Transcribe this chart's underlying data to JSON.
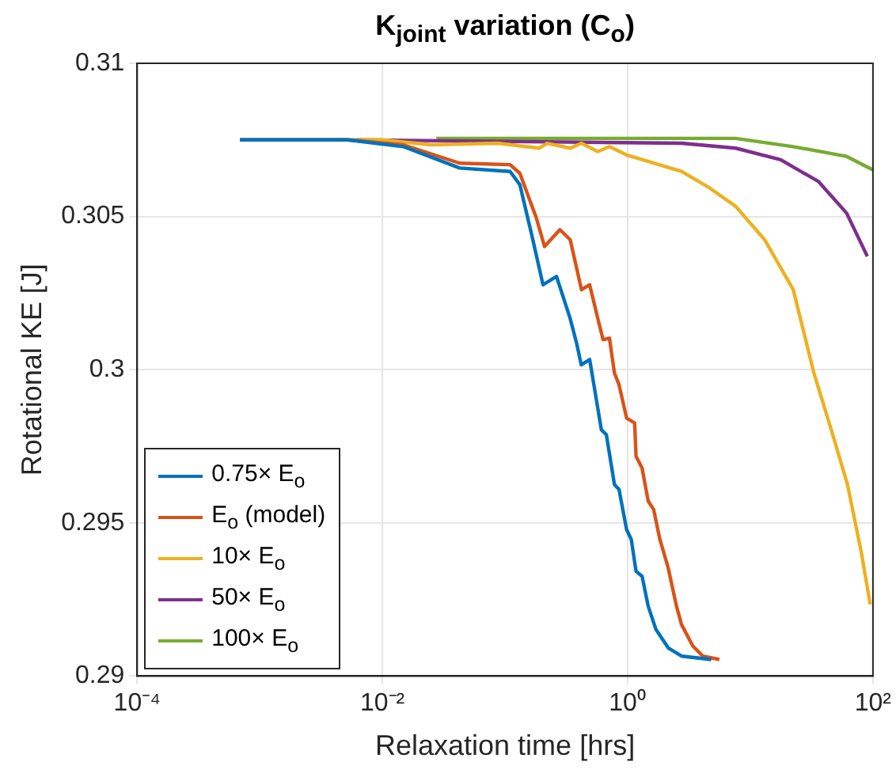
{
  "chart_data": {
    "type": "line",
    "title": "K$_{joint}$ variation (C$_{o}$)",
    "xlabel": "Relaxation time [hrs]",
    "ylabel": "Rotational KE [J]",
    "log": "x",
    "xlim": [
      0.0001,
      100
    ],
    "xticks": [
      {
        "value": 0.0001,
        "label": "10⁻⁴"
      },
      {
        "value": 0.01,
        "label": "10⁻²"
      },
      {
        "value": 1,
        "label": "10⁰"
      },
      {
        "value": 100,
        "label": "10²"
      }
    ],
    "ylim": [
      0.29,
      0.31
    ],
    "yticks": [
      0.29,
      0.295,
      0.3,
      0.305,
      0.31
    ],
    "grid": true,
    "legend": "bottom left",
    "marker": "none",
    "line_style": "solid",
    "series": [
      {
        "name": "0.75× E$_{o}$",
        "color": "#0072bd",
        "x": [
          0.00069,
          0.0052,
          0.0148,
          0.0427,
          0.11,
          0.132,
          0.165,
          0.204,
          0.263,
          0.339,
          0.383,
          0.418,
          0.49,
          0.61,
          0.67,
          0.78,
          0.85,
          0.98,
          1.07,
          1.17,
          1.31,
          1.47,
          1.7,
          2.14,
          2.75,
          4.8
        ],
        "values": [
          0.3075,
          0.3075,
          0.30728,
          0.30658,
          0.30647,
          0.30604,
          0.3044,
          0.30277,
          0.30304,
          0.30168,
          0.30087,
          0.30016,
          0.30033,
          0.29804,
          0.29788,
          0.29625,
          0.29609,
          0.29478,
          0.29446,
          0.29342,
          0.29326,
          0.29228,
          0.29152,
          0.29092,
          0.29065,
          0.29054
        ]
      },
      {
        "name": "E$_{o}$ (model)",
        "color": "#d95319",
        "x": [
          0.00069,
          0.0052,
          0.0148,
          0.0427,
          0.11,
          0.132,
          0.18,
          0.21,
          0.28,
          0.34,
          0.42,
          0.49,
          0.57,
          0.63,
          0.71,
          0.78,
          0.85,
          0.98,
          1.14,
          1.17,
          1.31,
          1.47,
          1.63,
          1.83,
          2.14,
          2.5,
          2.75,
          3.4,
          4.1,
          5.6
        ],
        "values": [
          0.3075,
          0.3075,
          0.30734,
          0.30674,
          0.30669,
          0.30641,
          0.30495,
          0.30402,
          0.30457,
          0.30424,
          0.30261,
          0.30277,
          0.30168,
          0.30098,
          0.30103,
          0.29989,
          0.29951,
          0.29842,
          0.29826,
          0.29717,
          0.29679,
          0.29571,
          0.29543,
          0.29446,
          0.29353,
          0.29228,
          0.29168,
          0.29098,
          0.29065,
          0.29054
        ]
      },
      {
        "name": "10× E$_{o}$",
        "color": "#edb120",
        "x": [
          0.00069,
          0.01,
          0.025,
          0.087,
          0.19,
          0.22,
          0.34,
          0.42,
          0.57,
          0.71,
          0.98,
          2.75,
          4.7,
          7.6,
          13.1,
          22.4,
          33,
          45.7,
          62,
          80,
          95
        ],
        "values": [
          0.3075,
          0.3075,
          0.30734,
          0.30739,
          0.30723,
          0.30739,
          0.30723,
          0.30739,
          0.30712,
          0.30728,
          0.30701,
          0.30647,
          0.30592,
          0.30533,
          0.30424,
          0.30261,
          0.29989,
          0.29804,
          0.29625,
          0.29408,
          0.29234
        ]
      },
      {
        "name": "50× E$_{o}$",
        "color": "#7e2f8e",
        "x": [
          0.0062,
          2.75,
          7.6,
          17.7,
          36,
          61,
          90
        ],
        "values": [
          0.3075,
          0.30739,
          0.30723,
          0.30685,
          0.30614,
          0.30511,
          0.3037
        ]
      },
      {
        "name": "100× E$_{o}$",
        "color": "#77ac30",
        "x": [
          0.0275,
          7.6,
          22.4,
          61,
          100
        ],
        "values": [
          0.30755,
          0.30755,
          0.30728,
          0.30696,
          0.30652
        ]
      }
    ]
  }
}
